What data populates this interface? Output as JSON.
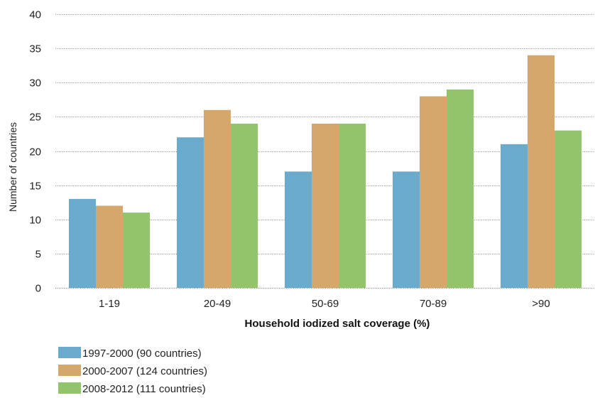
{
  "chart_data": {
    "type": "bar",
    "xlabel": "Household iodized salt coverage (%)",
    "ylabel": "Number of countries",
    "ylim": [
      0,
      40
    ],
    "yticks": [
      0,
      5,
      10,
      15,
      20,
      25,
      30,
      35,
      40
    ],
    "grid": true,
    "legend_position": "bottom-left",
    "categories": [
      "1-19",
      "20-49",
      "50-69",
      "70-89",
      ">90"
    ],
    "series": [
      {
        "name": "1997-2000 (90 countries)",
        "color": "#6aabcd",
        "values": [
          13,
          22,
          17,
          17,
          21
        ]
      },
      {
        "name": "2000-2007 (124 countries)",
        "color": "#d4a76a",
        "values": [
          12,
          26,
          24,
          28,
          34
        ]
      },
      {
        "name": "2008-2012 (111 countries)",
        "color": "#92c46b",
        "values": [
          11,
          24,
          24,
          29,
          23
        ]
      }
    ]
  }
}
